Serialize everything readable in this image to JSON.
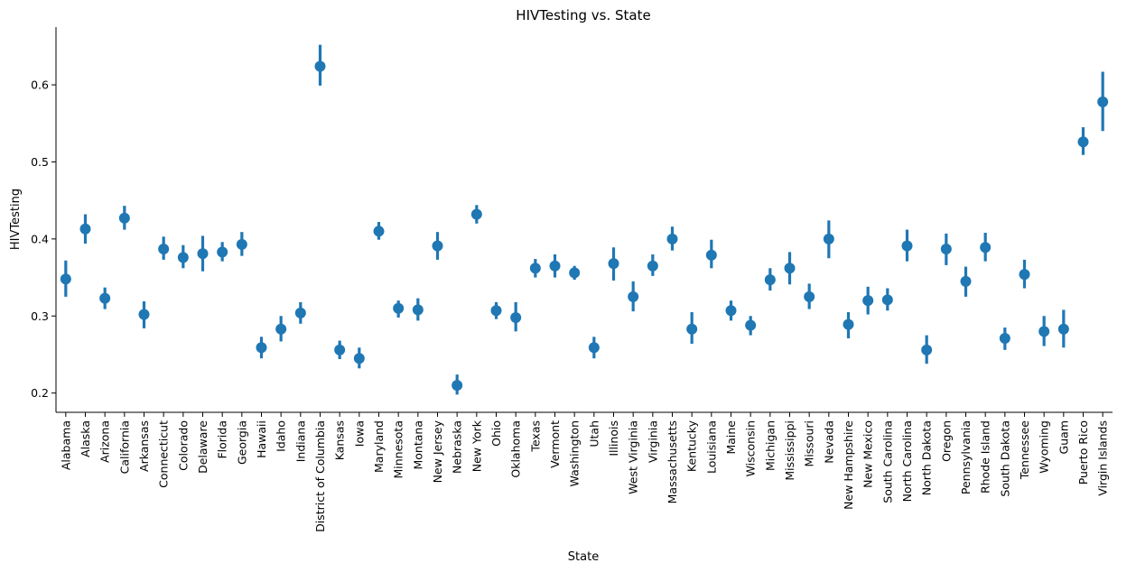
{
  "chart_data": {
    "type": "scatter",
    "title": "HIVTesting vs. State",
    "xlabel": "State",
    "ylabel": "HIVTesting",
    "ylim": [
      0.175,
      0.675
    ],
    "yticks": [
      0.2,
      0.3,
      0.4,
      0.5,
      0.6
    ],
    "ytick_labels": [
      "0.2",
      "0.3",
      "0.4",
      "0.5",
      "0.6"
    ],
    "grid": false,
    "color": "#1f77b4",
    "categories": [
      "Alabama",
      "Alaska",
      "Arizona",
      "California",
      "Arkansas",
      "Connecticut",
      "Colorado",
      "Delaware",
      "Florida",
      "Georgia",
      "Hawaii",
      "Idaho",
      "Indiana",
      "District of Columbia",
      "Kansas",
      "Iowa",
      "Maryland",
      "Minnesota",
      "Montana",
      "New Jersey",
      "Nebraska",
      "New York",
      "Ohio",
      "Oklahoma",
      "Texas",
      "Vermont",
      "Washington",
      "Utah",
      "Illinois",
      "West Virginia",
      "Virginia",
      "Massachusetts",
      "Kentucky",
      "Louisiana",
      "Maine",
      "Wisconsin",
      "Michigan",
      "Mississippi",
      "Missouri",
      "Nevada",
      "New Hampshire",
      "New Mexico",
      "South Carolina",
      "North Carolina",
      "North Dakota",
      "Oregon",
      "Pennsylvania",
      "Rhode Island",
      "South Dakota",
      "Tennessee",
      "Wyoming",
      "Guam",
      "Puerto Rico",
      "Virgin Islands"
    ],
    "values": [
      0.348,
      0.413,
      0.323,
      0.427,
      0.302,
      0.387,
      0.376,
      0.381,
      0.383,
      0.393,
      0.259,
      0.283,
      0.304,
      0.624,
      0.256,
      0.245,
      0.41,
      0.31,
      0.308,
      0.391,
      0.21,
      0.432,
      0.307,
      0.298,
      0.362,
      0.365,
      0.356,
      0.259,
      0.368,
      0.325,
      0.365,
      0.4,
      0.283,
      0.379,
      0.307,
      0.288,
      0.347,
      0.362,
      0.325,
      0.4,
      0.289,
      0.32,
      0.321,
      0.391,
      0.256,
      0.387,
      0.345,
      0.389,
      0.271,
      0.354,
      0.28,
      0.283,
      0.526,
      0.578
    ],
    "ci_low": [
      0.325,
      0.394,
      0.309,
      0.412,
      0.284,
      0.373,
      0.362,
      0.358,
      0.371,
      0.378,
      0.245,
      0.267,
      0.29,
      0.599,
      0.244,
      0.232,
      0.399,
      0.298,
      0.294,
      0.373,
      0.198,
      0.42,
      0.296,
      0.28,
      0.35,
      0.35,
      0.347,
      0.245,
      0.346,
      0.306,
      0.352,
      0.385,
      0.264,
      0.362,
      0.294,
      0.275,
      0.333,
      0.341,
      0.309,
      0.375,
      0.271,
      0.302,
      0.307,
      0.371,
      0.238,
      0.366,
      0.325,
      0.371,
      0.256,
      0.336,
      0.261,
      0.259,
      0.509,
      0.54
    ],
    "ci_high": [
      0.372,
      0.432,
      0.337,
      0.443,
      0.319,
      0.403,
      0.392,
      0.404,
      0.396,
      0.409,
      0.273,
      0.3,
      0.318,
      0.652,
      0.268,
      0.259,
      0.422,
      0.32,
      0.323,
      0.409,
      0.224,
      0.444,
      0.318,
      0.318,
      0.374,
      0.38,
      0.365,
      0.273,
      0.389,
      0.345,
      0.38,
      0.416,
      0.305,
      0.399,
      0.32,
      0.3,
      0.362,
      0.383,
      0.342,
      0.424,
      0.305,
      0.338,
      0.336,
      0.412,
      0.275,
      0.407,
      0.364,
      0.408,
      0.285,
      0.373,
      0.3,
      0.308,
      0.545,
      0.617
    ]
  }
}
